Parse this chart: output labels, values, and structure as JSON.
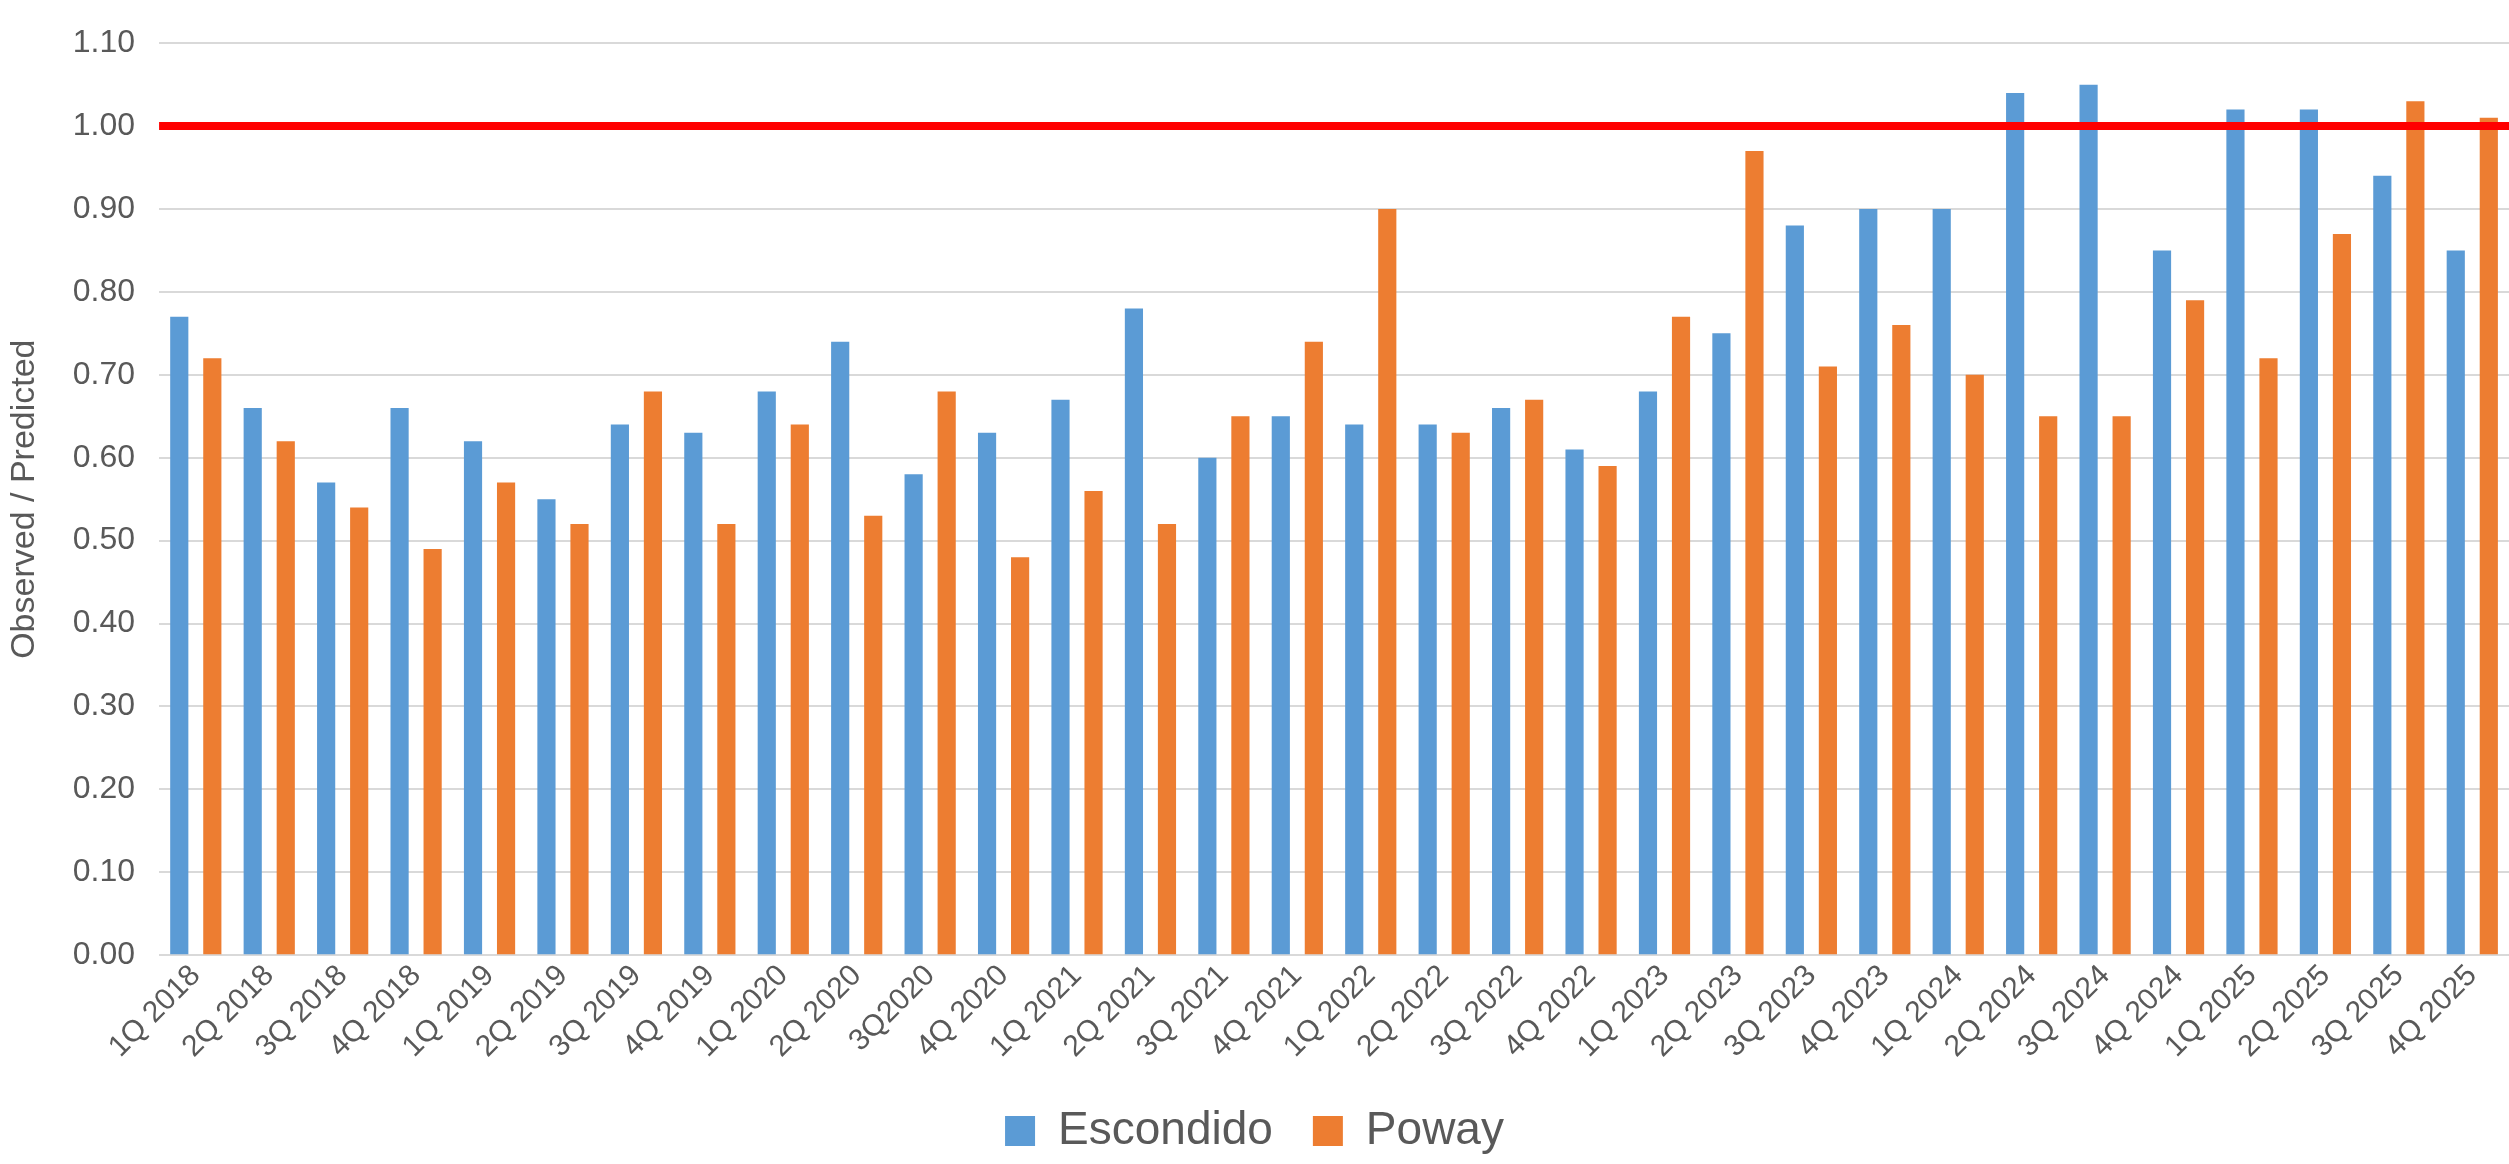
{
  "chart_data": {
    "type": "bar",
    "ylabel": "Observed / Predicted",
    "categories": [
      "1Q 2018",
      "2Q 2018",
      "3Q 2018",
      "4Q 2018",
      "1Q 2019",
      "2Q 2019",
      "3Q 2019",
      "4Q 2019",
      "1Q 2020",
      "2Q 2020",
      "3Q2020",
      "4Q 2020",
      "1Q 2021",
      "2Q 2021",
      "3Q 2021",
      "4Q 2021",
      "1Q 2022",
      "2Q 2022",
      "3Q 2022",
      "4Q 2022",
      "1Q 2023",
      "2Q 2023",
      "3Q 2023",
      "4Q 2023",
      "1Q 2024",
      "2Q 2024",
      "3Q 2024",
      "4Q 2024",
      "1Q 2025",
      "2Q 2025",
      "3Q 2025",
      "4Q 2025"
    ],
    "series": [
      {
        "name": "Escondido",
        "color": "#5b9bd5",
        "values": [
          0.77,
          0.66,
          0.57,
          0.66,
          0.62,
          0.55,
          0.64,
          0.63,
          0.68,
          0.74,
          0.58,
          0.63,
          0.67,
          0.78,
          0.6,
          0.65,
          0.64,
          0.64,
          0.66,
          0.61,
          0.68,
          0.75,
          0.88,
          0.9,
          0.9,
          1.04,
          1.05,
          0.85,
          1.02,
          1.02,
          0.94,
          0.85
        ]
      },
      {
        "name": "Poway",
        "color": "#ed7d31",
        "values": [
          0.72,
          0.62,
          0.54,
          0.49,
          0.57,
          0.52,
          0.68,
          0.52,
          0.64,
          0.53,
          0.68,
          0.48,
          0.56,
          0.52,
          0.65,
          0.74,
          0.9,
          0.63,
          0.67,
          0.59,
          0.77,
          0.97,
          0.71,
          0.76,
          0.7,
          0.65,
          0.65,
          0.79,
          0.72,
          0.87,
          1.03,
          1.01
        ]
      }
    ],
    "ylim": [
      0,
      1.1
    ],
    "yticks": [
      {
        "value": 0,
        "label": "0.00"
      },
      {
        "value": 0.1,
        "label": "0.10"
      },
      {
        "value": 0.2,
        "label": "0.20"
      },
      {
        "value": 0.3,
        "label": "0.30"
      },
      {
        "value": 0.4,
        "label": "0.40"
      },
      {
        "value": 0.5,
        "label": "0.50"
      },
      {
        "value": 0.6,
        "label": "0.60"
      },
      {
        "value": 0.7,
        "label": "0.70"
      },
      {
        "value": 0.8,
        "label": "0.80"
      },
      {
        "value": 0.9,
        "label": "0.90"
      },
      {
        "value": 1.0,
        "label": "1.00"
      },
      {
        "value": 1.1,
        "label": "1.10"
      }
    ],
    "grid": "y",
    "legend": "bottom",
    "ref_lines": [
      {
        "axis": "y",
        "value": 1.0,
        "color": "#ff0000"
      }
    ]
  }
}
